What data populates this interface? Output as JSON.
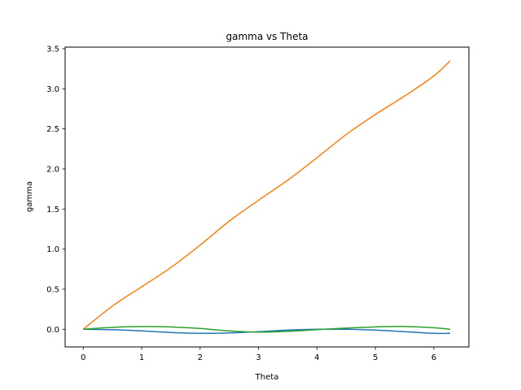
{
  "chart_data": {
    "type": "line",
    "title": "gamma vs Theta",
    "xlabel": "Theta",
    "ylabel": "gamma",
    "xlim": [
      -0.31,
      6.6
    ],
    "ylim": [
      -0.22,
      3.52
    ],
    "xticks": [
      0,
      1,
      2,
      3,
      4,
      5,
      6
    ],
    "yticks": [
      0.0,
      0.5,
      1.0,
      1.5,
      2.0,
      2.5,
      3.0,
      3.5
    ],
    "grid": false,
    "series": [
      {
        "color": "#1f77b4",
        "x": [
          0,
          0.5,
          1.0,
          1.5,
          2.0,
          2.5,
          3.0,
          3.5,
          4.0,
          4.5,
          5.0,
          5.5,
          6.0,
          6.28
        ],
        "y": [
          0.0,
          -0.005,
          -0.02,
          -0.04,
          -0.05,
          -0.045,
          -0.03,
          -0.01,
          0.0,
          0.0,
          -0.01,
          -0.03,
          -0.05,
          -0.05
        ]
      },
      {
        "color": "#ff7f0e",
        "x": [
          0,
          0.5,
          1.0,
          1.5,
          2.0,
          2.5,
          3.0,
          3.5,
          4.0,
          4.5,
          5.0,
          5.5,
          6.0,
          6.28
        ],
        "y": [
          0.0,
          0.29,
          0.53,
          0.77,
          1.05,
          1.35,
          1.61,
          1.86,
          2.14,
          2.43,
          2.68,
          2.91,
          3.16,
          3.35
        ]
      },
      {
        "color": "#2ca02c",
        "x": [
          0,
          0.5,
          1.0,
          1.5,
          2.0,
          2.5,
          3.0,
          3.5,
          4.0,
          4.5,
          5.0,
          5.5,
          6.0,
          6.28
        ],
        "y": [
          0.0,
          0.025,
          0.035,
          0.03,
          0.01,
          -0.02,
          -0.035,
          -0.025,
          -0.005,
          0.015,
          0.03,
          0.035,
          0.02,
          0.0
        ]
      }
    ]
  }
}
